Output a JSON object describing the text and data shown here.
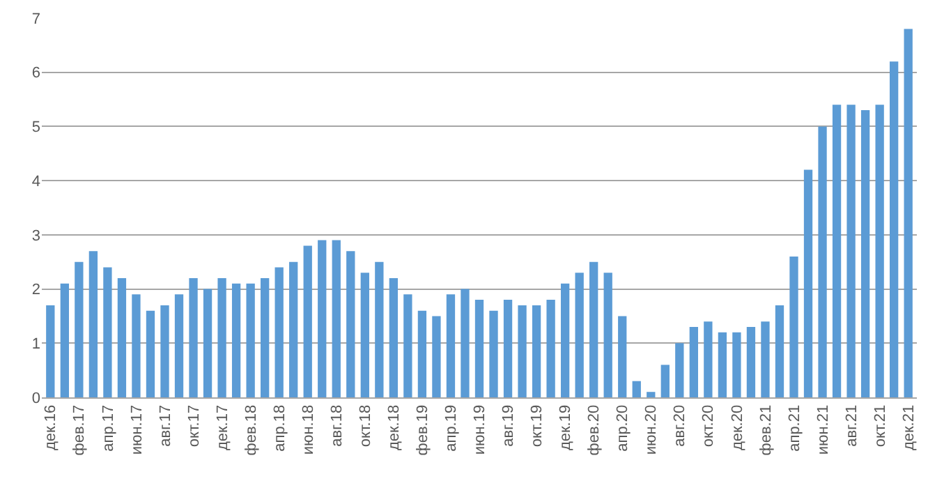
{
  "chart_data": {
    "type": "bar",
    "categories": [
      "дек.16",
      null,
      "фев.17",
      null,
      "апр.17",
      null,
      "июн.17",
      null,
      "авг.17",
      null,
      "окт.17",
      null,
      "дек.17",
      null,
      "фев.18",
      null,
      "апр.18",
      null,
      "июн.18",
      null,
      "авг.18",
      null,
      "окт.18",
      null,
      "дек.18",
      null,
      "фев.19",
      null,
      "апр.19",
      null,
      "июн.19",
      null,
      "авг.19",
      null,
      "окт.19",
      null,
      "дек.19",
      null,
      "фев.20",
      null,
      "апр.20",
      null,
      "июн.20",
      null,
      "авг.20",
      null,
      "окт.20",
      null,
      "дек.20",
      null,
      "фев.21",
      null,
      "апр.21",
      null,
      "июн.21",
      null,
      "авг.21",
      null,
      "окт.21",
      null,
      "дек.21"
    ],
    "values": [
      1.7,
      2.1,
      2.5,
      2.7,
      2.4,
      2.2,
      1.9,
      1.6,
      1.7,
      1.9,
      2.2,
      2.0,
      2.2,
      2.1,
      2.1,
      2.2,
      2.4,
      2.5,
      2.8,
      2.9,
      2.9,
      2.7,
      2.3,
      2.5,
      2.2,
      1.9,
      1.6,
      1.5,
      1.9,
      2.0,
      1.8,
      1.6,
      1.8,
      1.7,
      1.7,
      1.8,
      2.1,
      2.3,
      2.5,
      2.3,
      1.5,
      0.3,
      0.1,
      0.6,
      1.0,
      1.3,
      1.4,
      1.2,
      1.2,
      1.3,
      1.4,
      1.7,
      2.6,
      4.2,
      5.0,
      5.4,
      5.4,
      5.3,
      5.4,
      6.2,
      6.8
    ],
    "color": "#5b9bd5",
    "ylim": [
      0,
      7
    ],
    "yticks": [
      0,
      1,
      2,
      3,
      4,
      5,
      6,
      7
    ],
    "grid": "y"
  }
}
